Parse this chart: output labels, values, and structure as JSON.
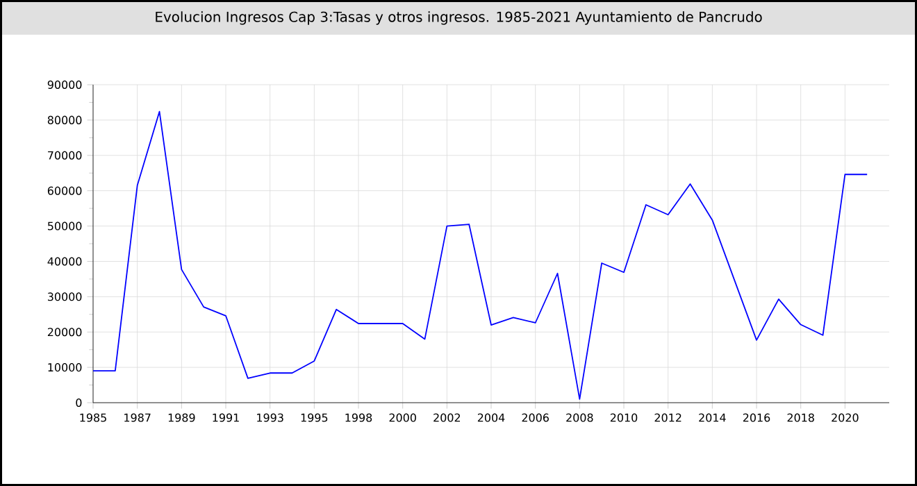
{
  "chart_data": {
    "type": "line",
    "title": "Evolucion Ingresos Cap 3:Tasas y otros ingresos. 1985-2021 Ayuntamiento de Pancrudo",
    "categories": [
      "1985",
      null,
      "1987",
      null,
      "1989",
      null,
      "1991",
      null,
      "1993",
      null,
      "1995",
      null,
      "1998",
      null,
      "2000",
      null,
      "2002",
      null,
      "2004",
      null,
      "2006",
      null,
      "2008",
      null,
      "2010",
      null,
      "2012",
      null,
      "2014",
      null,
      "2016",
      null,
      "2018",
      null,
      "2020",
      null
    ],
    "series": [
      {
        "color": "#0000ff",
        "values": [
          9000,
          9000,
          61500,
          82400,
          37700,
          27100,
          24600,
          6900,
          8400,
          8400,
          11800,
          26400,
          22400,
          22400,
          22400,
          18000,
          50000,
          50500,
          22000,
          24100,
          22600,
          36600,
          1000,
          39500,
          36900,
          56000,
          53200,
          61900,
          51700,
          34700,
          17700,
          29300,
          22100,
          19100,
          64600,
          64600
        ]
      }
    ],
    "ylim": [
      0,
      90000
    ],
    "yticks": [
      0,
      10000,
      20000,
      30000,
      40000,
      50000,
      60000,
      70000,
      80000,
      90000
    ],
    "grid": true
  }
}
